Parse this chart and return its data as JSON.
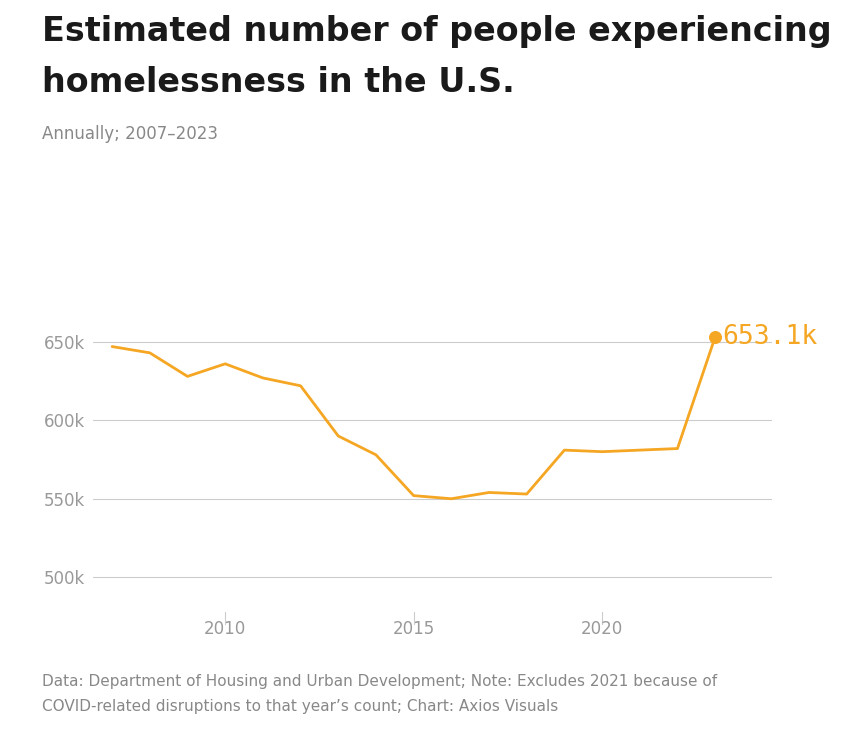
{
  "years": [
    2007,
    2008,
    2009,
    2010,
    2011,
    2012,
    2013,
    2014,
    2015,
    2016,
    2017,
    2018,
    2019,
    2020,
    2022,
    2023
  ],
  "values": [
    647000,
    643000,
    628000,
    636000,
    627000,
    622000,
    590000,
    578000,
    552000,
    550000,
    554000,
    553000,
    581000,
    580000,
    582000,
    653100
  ],
  "line_color": "#F5A623",
  "dot_color": "#F5A623",
  "title_line1": "Estimated number of people experiencing",
  "title_line2": "homelessness in the U.S.",
  "subtitle": "Annually; 2007–2023",
  "annotation_label": "653.1k",
  "annotation_color": "#F5A623",
  "ytick_labels": [
    "500k",
    "550k",
    "600k",
    "650k"
  ],
  "ytick_values": [
    500000,
    550000,
    600000,
    650000
  ],
  "xtick_labels": [
    "2010",
    "2015",
    "2020"
  ],
  "xtick_values": [
    2010,
    2015,
    2020
  ],
  "ylim": [
    478000,
    680000
  ],
  "xlim": [
    2006.5,
    2024.5
  ],
  "footer": "Data: Department of Housing and Urban Development; Note: Excludes 2021 because of\nCOVID-related disruptions to that year’s count; Chart: Axios Visuals",
  "background_color": "#ffffff",
  "grid_color": "#cccccc",
  "title_fontsize": 24,
  "subtitle_fontsize": 12,
  "tick_fontsize": 12,
  "annotation_fontsize": 19,
  "footer_fontsize": 11,
  "title_color": "#1a1a1a",
  "subtitle_color": "#888888",
  "tick_color": "#999999",
  "footer_color": "#888888"
}
